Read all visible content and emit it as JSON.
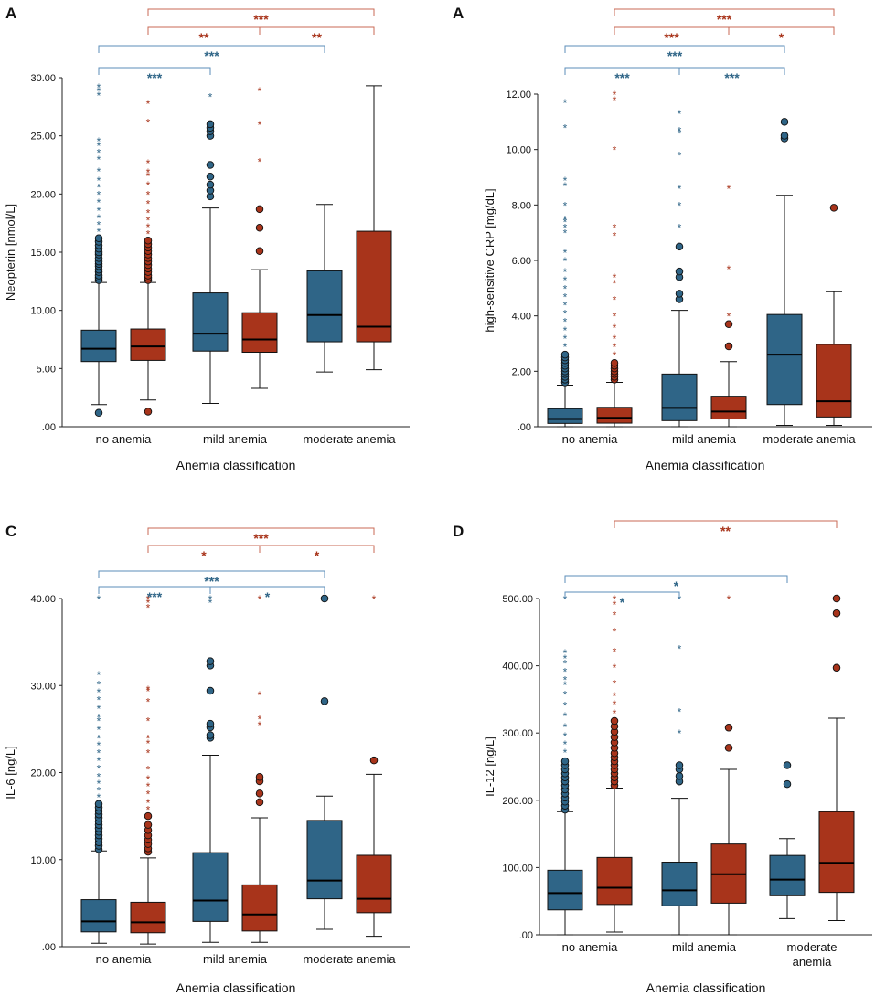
{
  "colors": {
    "blue": "#2f6587",
    "red": "#a8341b",
    "blue_bracket": "#5b8db8",
    "red_bracket": "#c96a55",
    "outline": "#1a1a1a"
  },
  "chart_data": [
    {
      "type": "box",
      "panel_label": "A",
      "ylabel": "Neopterin [nmol/L]",
      "xlabel": "Anemia classification",
      "categories": [
        "no anemia",
        "mild anemia",
        "moderate anemia"
      ],
      "yticks": [
        ".00",
        "5.00",
        "10.00",
        "15.00",
        "20.00",
        "25.00",
        "30.00"
      ],
      "ylim": [
        0,
        30
      ],
      "series_names": [
        "blue",
        "red"
      ],
      "boxes": [
        {
          "cat": 0,
          "series": 0,
          "lo": 1.9,
          "q1": 5.6,
          "med": 6.7,
          "q3": 8.3,
          "hi": 12.4,
          "circles": [
            1.2,
            12.6,
            12.8,
            13.0,
            13.3,
            13.5,
            13.8,
            14.0,
            14.2,
            14.5,
            14.8,
            15.0,
            15.3,
            15.6,
            15.9,
            16.2
          ],
          "stars": [
            16.8,
            17.4,
            18.0,
            18.6,
            19.3,
            20.0,
            20.6,
            21.2,
            22.0,
            23.0,
            23.6,
            24.2,
            24.6,
            28.5,
            28.9,
            29.2
          ]
        },
        {
          "cat": 0,
          "series": 1,
          "lo": 2.3,
          "q1": 5.7,
          "med": 6.9,
          "q3": 8.4,
          "hi": 12.4,
          "circles": [
            1.3,
            12.6,
            12.8,
            13.0,
            13.3,
            13.6,
            13.9,
            14.2,
            14.5,
            14.8,
            15.1,
            15.4,
            15.7,
            16.0
          ],
          "stars": [
            16.6,
            17.2,
            17.8,
            18.4,
            19.2,
            20.0,
            20.8,
            21.6,
            21.9,
            22.7,
            26.2,
            27.8
          ]
        },
        {
          "cat": 1,
          "series": 0,
          "lo": 2.0,
          "q1": 6.5,
          "med": 8.0,
          "q3": 11.5,
          "hi": 18.8,
          "circles": [
            19.8,
            20.3,
            20.8,
            21.5,
            22.5,
            25.0,
            25.4,
            25.7,
            26.0
          ],
          "stars": [
            28.4
          ]
        },
        {
          "cat": 1,
          "series": 1,
          "lo": 3.3,
          "q1": 6.4,
          "med": 7.5,
          "q3": 9.8,
          "hi": 13.5,
          "circles": [
            15.1,
            17.1,
            18.7
          ],
          "stars": [
            22.8,
            26.0,
            28.9
          ]
        },
        {
          "cat": 2,
          "series": 0,
          "lo": 4.7,
          "q1": 7.3,
          "med": 9.6,
          "q3": 13.4,
          "hi": 19.1,
          "circles": [],
          "stars": []
        },
        {
          "cat": 2,
          "series": 1,
          "lo": 4.9,
          "q1": 7.3,
          "med": 8.6,
          "q3": 16.8,
          "hi": 29.3,
          "circles": [],
          "stars": []
        }
      ],
      "brackets": [
        {
          "from": 0,
          "to": 2,
          "series": 1,
          "labels": [
            "***"
          ]
        },
        {
          "from": 0,
          "to": 2,
          "series": 1,
          "mid": 1,
          "labels": [
            "**",
            "**"
          ]
        },
        {
          "from": 0,
          "to": 2,
          "series": 0,
          "labels": [
            "***"
          ]
        },
        {
          "from": 0,
          "to": 1,
          "series": 0,
          "labels": [
            "***"
          ]
        }
      ]
    },
    {
      "type": "box",
      "panel_label": "A",
      "ylabel": "high-sensitive CRP [mg/dL]",
      "xlabel": "Anemia classification",
      "categories": [
        "no anemia",
        "mild anemia",
        "moderate anemia"
      ],
      "yticks": [
        ".00",
        "2.00",
        "4.00",
        "6.00",
        "8.00",
        "10.00",
        "12.00"
      ],
      "ylim": [
        0,
        12
      ],
      "series_names": [
        "blue",
        "red"
      ],
      "boxes": [
        {
          "cat": 0,
          "series": 0,
          "lo": 0.0,
          "q1": 0.12,
          "med": 0.28,
          "q3": 0.65,
          "hi": 1.5,
          "circles": [
            1.6,
            1.7,
            1.8,
            1.9,
            2.0,
            2.1,
            2.2,
            2.3,
            2.4,
            2.5,
            2.6
          ],
          "stars": [
            2.9,
            3.2,
            3.5,
            3.8,
            4.1,
            4.4,
            4.7,
            5.0,
            5.3,
            5.6,
            6.0,
            6.3,
            7.0,
            7.2,
            7.4,
            7.5,
            8.0,
            8.7,
            8.9,
            10.8,
            11.7
          ]
        },
        {
          "cat": 0,
          "series": 1,
          "lo": 0.0,
          "q1": 0.13,
          "med": 0.32,
          "q3": 0.7,
          "hi": 1.6,
          "circles": [
            1.7,
            1.8,
            1.9,
            2.0,
            2.1,
            2.2,
            2.3
          ],
          "stars": [
            2.6,
            2.9,
            3.2,
            3.6,
            4.0,
            4.6,
            5.2,
            5.4,
            6.9,
            7.2,
            10.0,
            11.8,
            12.0
          ]
        },
        {
          "cat": 1,
          "series": 0,
          "lo": 0.0,
          "q1": 0.22,
          "med": 0.68,
          "q3": 1.9,
          "hi": 4.2,
          "circles": [
            4.6,
            4.8,
            5.4,
            5.6,
            6.5
          ],
          "stars": [
            7.2,
            8.0,
            8.6,
            9.8,
            10.6,
            10.7,
            11.3
          ]
        },
        {
          "cat": 1,
          "series": 1,
          "lo": 0.0,
          "q1": 0.28,
          "med": 0.55,
          "q3": 1.1,
          "hi": 2.35,
          "circles": [
            2.9,
            3.7
          ],
          "stars": [
            4.0,
            5.7,
            8.6
          ]
        },
        {
          "cat": 2,
          "series": 0,
          "lo": 0.05,
          "q1": 0.8,
          "med": 2.6,
          "q3": 4.05,
          "hi": 8.35,
          "circles": [
            10.4,
            10.5,
            11.0
          ],
          "stars": []
        },
        {
          "cat": 2,
          "series": 1,
          "lo": 0.05,
          "q1": 0.35,
          "med": 0.92,
          "q3": 2.97,
          "hi": 4.87,
          "circles": [
            7.9
          ],
          "stars": []
        }
      ],
      "brackets": [
        {
          "from": 0,
          "to": 2,
          "series": 1,
          "labels": [
            "***"
          ]
        },
        {
          "from": 0,
          "to": 2,
          "series": 1,
          "mid": 1,
          "labels": [
            "***",
            "*"
          ]
        },
        {
          "from": 0,
          "to": 2,
          "series": 0,
          "labels": [
            "***"
          ]
        },
        {
          "from": 0,
          "to": 2,
          "series": 0,
          "mid": 1,
          "labels": [
            "***",
            "***"
          ]
        }
      ]
    },
    {
      "type": "box",
      "panel_label": "C",
      "ylabel": "IL-6 [ng/L]",
      "xlabel": "Anemia classification",
      "categories": [
        "no anemia",
        "mild anemia",
        "moderate anemia"
      ],
      "yticks": [
        ".00",
        "10.00",
        "20.00",
        "30.00",
        "40.00"
      ],
      "ylim": [
        0,
        40
      ],
      "series_names": [
        "blue",
        "red"
      ],
      "boxes": [
        {
          "cat": 0,
          "series": 0,
          "lo": 0.4,
          "q1": 1.7,
          "med": 2.9,
          "q3": 5.4,
          "hi": 11.0,
          "circles": [
            11.2,
            11.6,
            12.0,
            12.4,
            12.8,
            13.2,
            13.6,
            14.0,
            14.4,
            14.8,
            15.2,
            15.6,
            16.0,
            16.4
          ],
          "stars": [
            17.2,
            18.0,
            18.8,
            19.6,
            20.5,
            21.4,
            22.3,
            23.2,
            24.0,
            25.0,
            26.0,
            26.4,
            27.4,
            28.4,
            29.3,
            30.2,
            31.3,
            40.0
          ]
        },
        {
          "cat": 0,
          "series": 1,
          "lo": 0.3,
          "q1": 1.6,
          "med": 2.8,
          "q3": 5.1,
          "hi": 10.2,
          "circles": [
            10.9,
            11.3,
            11.8,
            12.3,
            12.8,
            13.4,
            14.0,
            15.0
          ],
          "stars": [
            15.8,
            16.6,
            17.6,
            18.5,
            19.3,
            20.4,
            22.3,
            23.4,
            24.0,
            26.0,
            28.2,
            29.4,
            29.6,
            39.0,
            39.6,
            40.0
          ]
        },
        {
          "cat": 1,
          "series": 0,
          "lo": 0.5,
          "q1": 2.9,
          "med": 5.3,
          "q3": 10.8,
          "hi": 22.0,
          "circles": [
            24.0,
            24.3,
            25.2,
            25.6,
            29.4,
            32.3,
            32.8
          ],
          "stars": [
            39.6,
            40.0
          ]
        },
        {
          "cat": 1,
          "series": 1,
          "lo": 0.5,
          "q1": 1.8,
          "med": 3.7,
          "q3": 7.1,
          "hi": 14.8,
          "circles": [
            16.6,
            17.6,
            19.0,
            19.5
          ],
          "stars": [
            25.5,
            26.2,
            29.0,
            40.0
          ]
        },
        {
          "cat": 2,
          "series": 0,
          "lo": 2.0,
          "q1": 5.5,
          "med": 7.6,
          "q3": 14.5,
          "hi": 17.3,
          "circles": [
            28.2,
            40.0
          ],
          "stars": []
        },
        {
          "cat": 2,
          "series": 1,
          "lo": 1.2,
          "q1": 3.9,
          "med": 5.5,
          "q3": 10.5,
          "hi": 19.8,
          "circles": [
            21.4
          ],
          "stars": [
            40.0
          ]
        }
      ],
      "brackets": [
        {
          "from": 0,
          "to": 2,
          "series": 1,
          "labels": [
            "***"
          ]
        },
        {
          "from": 0,
          "to": 2,
          "series": 1,
          "mid": 1,
          "labels": [
            "*",
            "*"
          ]
        },
        {
          "from": 0,
          "to": 2,
          "series": 0,
          "labels": [
            "***"
          ]
        },
        {
          "from": 0,
          "to": 2,
          "series": 0,
          "mid": 1,
          "labels": [
            "***",
            "*"
          ]
        }
      ]
    },
    {
      "type": "box",
      "panel_label": "D",
      "ylabel": "IL-12 [ng/L]",
      "xlabel": "Anemia classification",
      "categories": [
        "no anemia",
        "mild anemia",
        "moderate\nanemia"
      ],
      "yticks": [
        ".00",
        "100.00",
        "200.00",
        "300.00",
        "400.00",
        "500.00"
      ],
      "ylim": [
        0,
        500
      ],
      "series_names": [
        "blue",
        "red"
      ],
      "boxes": [
        {
          "cat": 0,
          "series": 0,
          "lo": 0,
          "q1": 37,
          "med": 62,
          "q3": 96,
          "hi": 183,
          "circles": [
            186,
            192,
            198,
            204,
            210,
            216,
            222,
            228,
            234,
            240,
            246,
            252,
            258
          ],
          "stars": [
            272,
            284,
            296,
            310,
            326,
            342,
            358,
            372,
            380,
            392,
            404,
            412,
            420,
            500
          ]
        },
        {
          "cat": 0,
          "series": 1,
          "lo": 4,
          "q1": 45,
          "med": 70,
          "q3": 115,
          "hi": 218,
          "circles": [
            222,
            228,
            234,
            240,
            246,
            252,
            258,
            264,
            270,
            278,
            286,
            294,
            302,
            310,
            318
          ],
          "stars": [
            330,
            344,
            356,
            374,
            398,
            422,
            452,
            476,
            492,
            500
          ]
        },
        {
          "cat": 1,
          "series": 0,
          "lo": 0,
          "q1": 43,
          "med": 66,
          "q3": 108,
          "hi": 203,
          "circles": [
            228,
            236,
            246,
            252
          ],
          "stars": [
            300,
            332,
            426,
            500
          ]
        },
        {
          "cat": 1,
          "series": 1,
          "lo": 0,
          "q1": 47,
          "med": 90,
          "q3": 135,
          "hi": 246,
          "circles": [
            278,
            308
          ],
          "stars": [
            500
          ]
        },
        {
          "cat": 2,
          "series": 0,
          "lo": 24,
          "q1": 58,
          "med": 82,
          "q3": 118,
          "hi": 143,
          "circles": [
            224,
            252
          ],
          "stars": []
        },
        {
          "cat": 2,
          "series": 1,
          "lo": 21,
          "q1": 63,
          "med": 107,
          "q3": 183,
          "hi": 322,
          "circles": [
            397,
            478,
            500
          ],
          "stars": []
        }
      ],
      "brackets": [
        {
          "from": 0,
          "to": 2,
          "series": 1,
          "labels": [
            "**"
          ]
        },
        {
          "from": 0,
          "to": 2,
          "series": 0,
          "labels": [
            "*"
          ]
        },
        {
          "from": 0,
          "to": 1,
          "series": 0,
          "labels": [
            "*"
          ]
        }
      ]
    }
  ]
}
